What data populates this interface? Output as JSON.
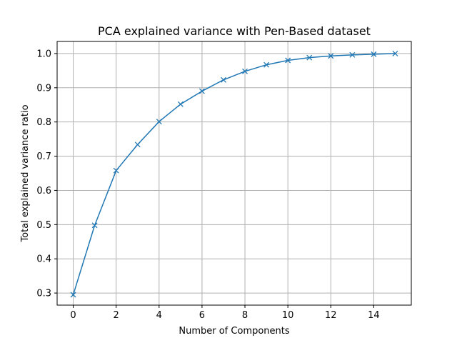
{
  "chart_data": {
    "type": "line",
    "title": "PCA explained variance with Pen-Based dataset",
    "xlabel": "Number of Components",
    "ylabel": "Total explained variance ratio",
    "x": [
      0,
      1,
      2,
      3,
      4,
      5,
      6,
      7,
      8,
      9,
      10,
      11,
      12,
      13,
      14,
      15
    ],
    "series": [
      {
        "values": [
          0.295,
          0.498,
          0.658,
          0.734,
          0.801,
          0.852,
          0.89,
          0.923,
          0.948,
          0.967,
          0.98,
          0.988,
          0.993,
          0.996,
          0.998,
          1.0
        ],
        "color": "#1f77b4",
        "marker": "x"
      }
    ],
    "xlim": [
      -0.75,
      15.75
    ],
    "ylim": [
      0.2647,
      1.0353
    ],
    "xticks": [
      0,
      2,
      4,
      6,
      8,
      10,
      12,
      14
    ],
    "yticks": [
      0.3,
      0.4,
      0.5,
      0.6,
      0.7,
      0.8,
      0.9,
      1.0
    ],
    "grid": true,
    "legend": "none"
  }
}
